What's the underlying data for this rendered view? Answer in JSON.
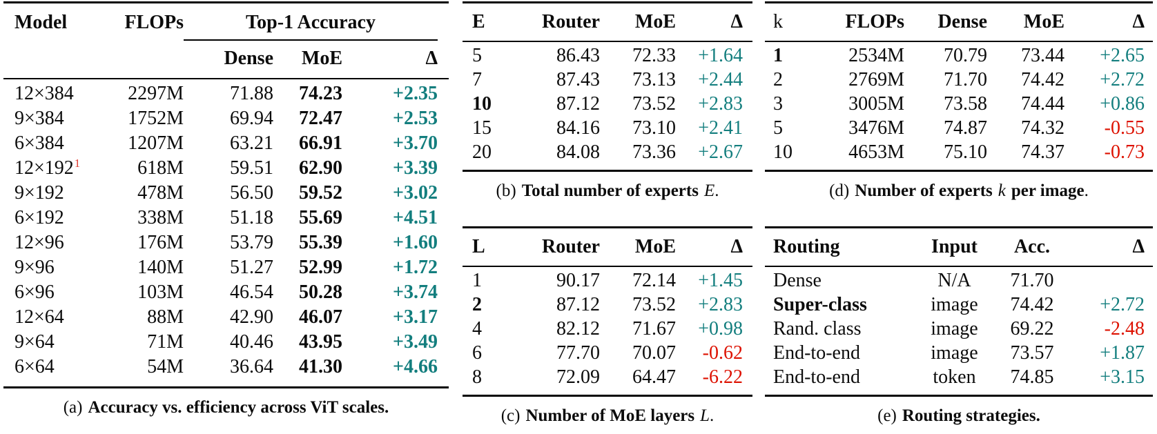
{
  "colors": {
    "positive": "#137e7e",
    "negative": "#dd1100",
    "footnote": "#e03b30"
  },
  "table_a": {
    "headers": {
      "model": "Model",
      "flops": "FLOPs",
      "group": "Top-1 Accuracy",
      "dense": "Dense",
      "moe": "MoE",
      "delta": "Δ"
    },
    "rows": [
      {
        "model": "12×384",
        "sup": "",
        "flops": "2297M",
        "dense": "71.88",
        "moe": "74.23",
        "delta": "+2.35",
        "delta_class": "pos"
      },
      {
        "model": "9×384",
        "sup": "",
        "flops": "1752M",
        "dense": "69.94",
        "moe": "72.47",
        "delta": "+2.53",
        "delta_class": "pos"
      },
      {
        "model": "6×384",
        "sup": "",
        "flops": "1207M",
        "dense": "63.21",
        "moe": "66.91",
        "delta": "+3.70",
        "delta_class": "pos"
      },
      {
        "model": "12×192",
        "sup": "1",
        "flops": "618M",
        "dense": "59.51",
        "moe": "62.90",
        "delta": "+3.39",
        "delta_class": "pos"
      },
      {
        "model": "9×192",
        "sup": "",
        "flops": "478M",
        "dense": "56.50",
        "moe": "59.52",
        "delta": "+3.02",
        "delta_class": "pos"
      },
      {
        "model": "6×192",
        "sup": "",
        "flops": "338M",
        "dense": "51.18",
        "moe": "55.69",
        "delta": "+4.51",
        "delta_class": "pos"
      },
      {
        "model": "12×96",
        "sup": "",
        "flops": "176M",
        "dense": "53.79",
        "moe": "55.39",
        "delta": "+1.60",
        "delta_class": "pos"
      },
      {
        "model": "9×96",
        "sup": "",
        "flops": "140M",
        "dense": "51.27",
        "moe": "52.99",
        "delta": "+1.72",
        "delta_class": "pos"
      },
      {
        "model": "6×96",
        "sup": "",
        "flops": "103M",
        "dense": "46.54",
        "moe": "50.28",
        "delta": "+3.74",
        "delta_class": "pos"
      },
      {
        "model": "12×64",
        "sup": "",
        "flops": "88M",
        "dense": "42.90",
        "moe": "46.07",
        "delta": "+3.17",
        "delta_class": "pos"
      },
      {
        "model": "9×64",
        "sup": "",
        "flops": "71M",
        "dense": "40.46",
        "moe": "43.95",
        "delta": "+3.49",
        "delta_class": "pos"
      },
      {
        "model": "6×64",
        "sup": "",
        "flops": "54M",
        "dense": "36.64",
        "moe": "41.30",
        "delta": "+4.66",
        "delta_class": "pos"
      }
    ],
    "caption": {
      "label": "(a)",
      "bold_pre": "Accuracy vs. efficiency across ViT scales.",
      "math": "",
      "bold_post": "",
      "tail": ""
    }
  },
  "table_b": {
    "headers": {
      "col1": "E",
      "col2": "Router",
      "col3": "MoE",
      "delta": "Δ"
    },
    "rows": [
      {
        "col1": "5",
        "col1_class": "",
        "col2": "86.43",
        "col3": "72.33",
        "delta": "+1.64",
        "delta_class": "pos"
      },
      {
        "col1": "7",
        "col1_class": "",
        "col2": "87.43",
        "col3": "73.13",
        "delta": "+2.44",
        "delta_class": "pos"
      },
      {
        "col1": "10",
        "col1_class": "bold",
        "col2": "87.12",
        "col3": "73.52",
        "delta": "+2.83",
        "delta_class": "pos"
      },
      {
        "col1": "15",
        "col1_class": "",
        "col2": "84.16",
        "col3": "73.10",
        "delta": "+2.41",
        "delta_class": "pos"
      },
      {
        "col1": "20",
        "col1_class": "",
        "col2": "84.08",
        "col3": "73.36",
        "delta": "+2.67",
        "delta_class": "pos"
      }
    ],
    "caption": {
      "label": "(b)",
      "bold_pre": "Total number of experts",
      "math": "E",
      "bold_post": "",
      "tail": "."
    }
  },
  "table_c": {
    "headers": {
      "col1": "L",
      "col2": "Router",
      "col3": "MoE",
      "delta": "Δ"
    },
    "rows": [
      {
        "col1": "1",
        "col1_class": "",
        "col2": "90.17",
        "col3": "72.14",
        "delta": "+1.45",
        "delta_class": "pos"
      },
      {
        "col1": "2",
        "col1_class": "bold",
        "col2": "87.12",
        "col3": "73.52",
        "delta": "+2.83",
        "delta_class": "pos"
      },
      {
        "col1": "4",
        "col1_class": "",
        "col2": "82.12",
        "col3": "71.67",
        "delta": "+0.98",
        "delta_class": "pos"
      },
      {
        "col1": "6",
        "col1_class": "",
        "col2": "77.70",
        "col3": "70.07",
        "delta": "-0.62",
        "delta_class": "neg"
      },
      {
        "col1": "8",
        "col1_class": "",
        "col2": "72.09",
        "col3": "64.47",
        "delta": "-6.22",
        "delta_class": "neg"
      }
    ],
    "caption": {
      "label": "(c)",
      "bold_pre": "Number of MoE layers",
      "math": "L",
      "bold_post": "",
      "tail": "."
    }
  },
  "table_d": {
    "headers": {
      "col1": "k",
      "col2": "FLOPs",
      "col3": "Dense",
      "col4": "MoE",
      "delta": "Δ"
    },
    "rows": [
      {
        "col1": "1",
        "col1_class": "bold",
        "col2": "2534M",
        "col3": "70.79",
        "col4": "73.44",
        "delta": "+2.65",
        "delta_class": "pos"
      },
      {
        "col1": "2",
        "col1_class": "",
        "col2": "2769M",
        "col3": "71.70",
        "col4": "74.42",
        "delta": "+2.72",
        "delta_class": "pos"
      },
      {
        "col1": "3",
        "col1_class": "",
        "col2": "3005M",
        "col3": "73.58",
        "col4": "74.44",
        "delta": "+0.86",
        "delta_class": "pos"
      },
      {
        "col1": "5",
        "col1_class": "",
        "col2": "3476M",
        "col3": "74.87",
        "col4": "74.32",
        "delta": "-0.55",
        "delta_class": "neg"
      },
      {
        "col1": "10",
        "col1_class": "",
        "col2": "4653M",
        "col3": "75.10",
        "col4": "74.37",
        "delta": "-0.73",
        "delta_class": "neg"
      }
    ],
    "caption": {
      "label": "(d)",
      "bold_pre": "Number of experts",
      "math": "k",
      "bold_post": "per image",
      "tail": "."
    }
  },
  "table_e": {
    "headers": {
      "col1": "Routing",
      "col2": "Input",
      "col3": "Acc.",
      "delta": "Δ"
    },
    "rows": [
      {
        "col1": "Dense",
        "col1_class": "",
        "col2": "N/A",
        "col3": "71.70",
        "delta": "",
        "delta_class": ""
      },
      {
        "col1": "Super-class",
        "col1_class": "bold",
        "col2": "image",
        "col3": "74.42",
        "delta": "+2.72",
        "delta_class": "pos"
      },
      {
        "col1": "Rand. class",
        "col1_class": "",
        "col2": "image",
        "col3": "69.22",
        "delta": "-2.48",
        "delta_class": "neg"
      },
      {
        "col1": "End-to-end",
        "col1_class": "",
        "col2": "image",
        "col3": "73.57",
        "delta": "+1.87",
        "delta_class": "pos"
      },
      {
        "col1": "End-to-end",
        "col1_class": "",
        "col2": "token",
        "col3": "74.85",
        "delta": "+3.15",
        "delta_class": "pos"
      }
    ],
    "caption": {
      "label": "(e)",
      "bold_pre": "Routing strategies.",
      "math": "",
      "bold_post": "",
      "tail": ""
    }
  }
}
